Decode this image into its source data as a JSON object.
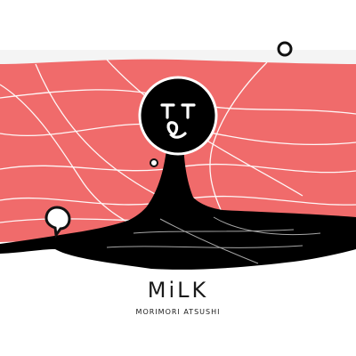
{
  "album": {
    "title": "MiLK",
    "artist": "MORIMORI ATSUSHI"
  },
  "palette": {
    "background": "#ffffff",
    "band": "#f06b6b",
    "figure": "#000000"
  },
  "icons": [
    "ring-bubble-icon",
    "speech-bubble-icon",
    "small-bubble-icon"
  ]
}
